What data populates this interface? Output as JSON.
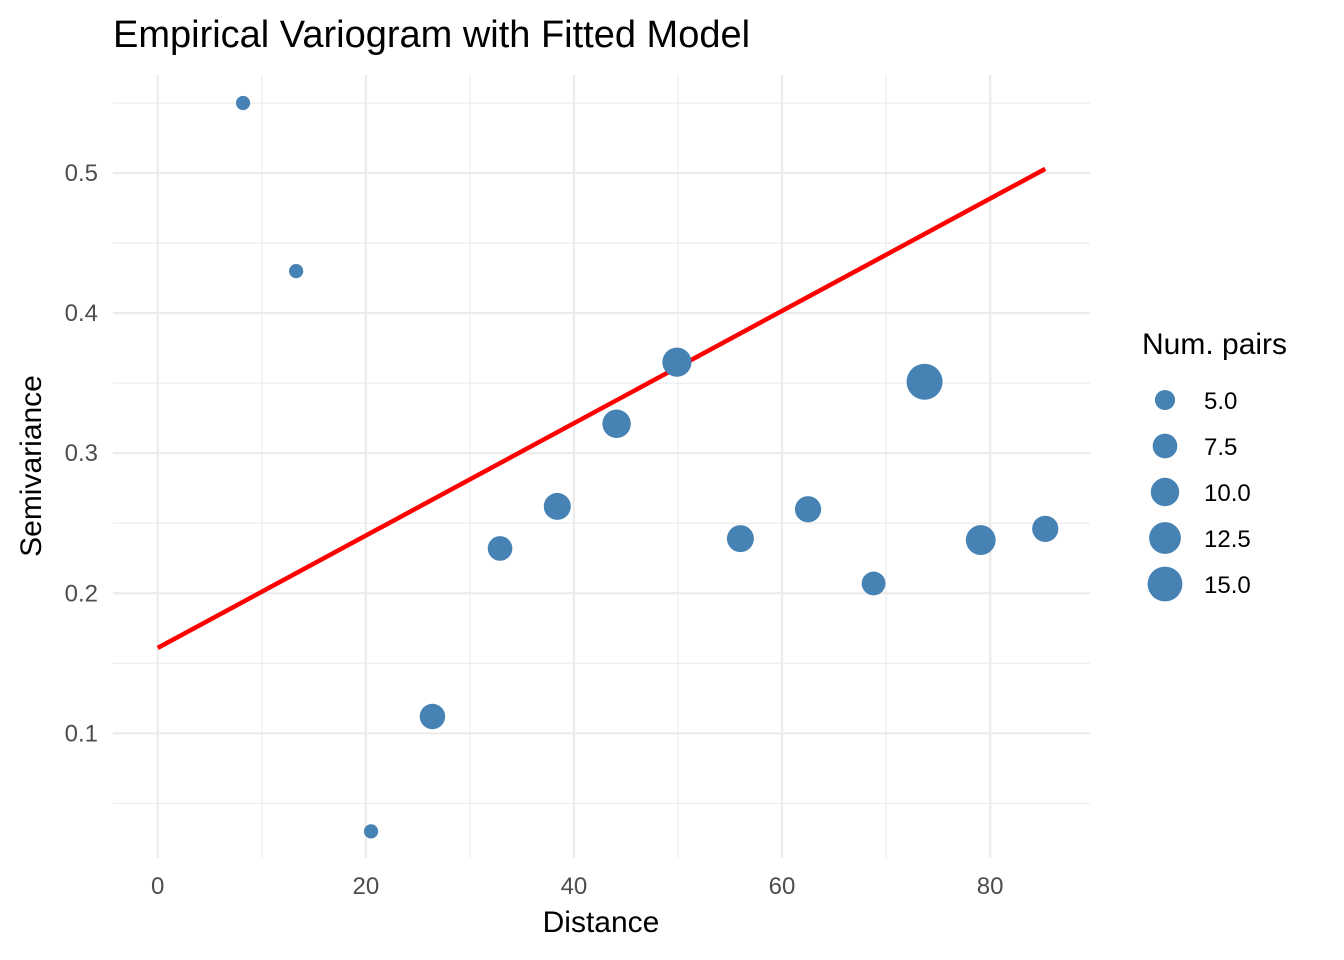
{
  "chart_data": {
    "type": "scatter",
    "title": "Empirical Variogram with Fitted Model",
    "xlabel": "Distance",
    "ylabel": "Semivariance",
    "xlim": [
      -4.3,
      89.6
    ],
    "ylim": [
      0.011,
      0.57
    ],
    "x_ticks": [
      0,
      20,
      40,
      60,
      80
    ],
    "x_tick_labels": [
      "0",
      "20",
      "40",
      "60",
      "80"
    ],
    "y_ticks": [
      0.1,
      0.2,
      0.3,
      0.4,
      0.5
    ],
    "y_tick_labels": [
      "0.1",
      "0.2",
      "0.3",
      "0.4",
      "0.5"
    ],
    "grid": true,
    "points": {
      "color": "#4682b4",
      "x": [
        8.2,
        13.3,
        20.5,
        26.4,
        32.9,
        38.4,
        44.1,
        49.9,
        56.0,
        62.5,
        68.8,
        73.7,
        79.1,
        85.3
      ],
      "y": [
        0.55,
        0.43,
        0.03,
        0.112,
        0.232,
        0.262,
        0.321,
        0.365,
        0.239,
        0.26,
        0.207,
        0.351,
        0.238,
        0.246
      ],
      "num_pairs": [
        2.5,
        2.5,
        2.5,
        8.0,
        7.5,
        9.0,
        10.0,
        10.5,
        9.0,
        8.5,
        7.0,
        16.0,
        11.0,
        8.5
      ]
    },
    "fitted_model": {
      "color": "#ff0000",
      "x": [
        0,
        85.3
      ],
      "y": [
        0.161,
        0.503
      ]
    },
    "legend": {
      "title": "Num. pairs",
      "placement": "right",
      "values": [
        5.0,
        7.5,
        10.0,
        12.5,
        15.0
      ],
      "labels": [
        "5.0",
        "7.5",
        "10.0",
        "12.5",
        "15.0"
      ]
    }
  }
}
